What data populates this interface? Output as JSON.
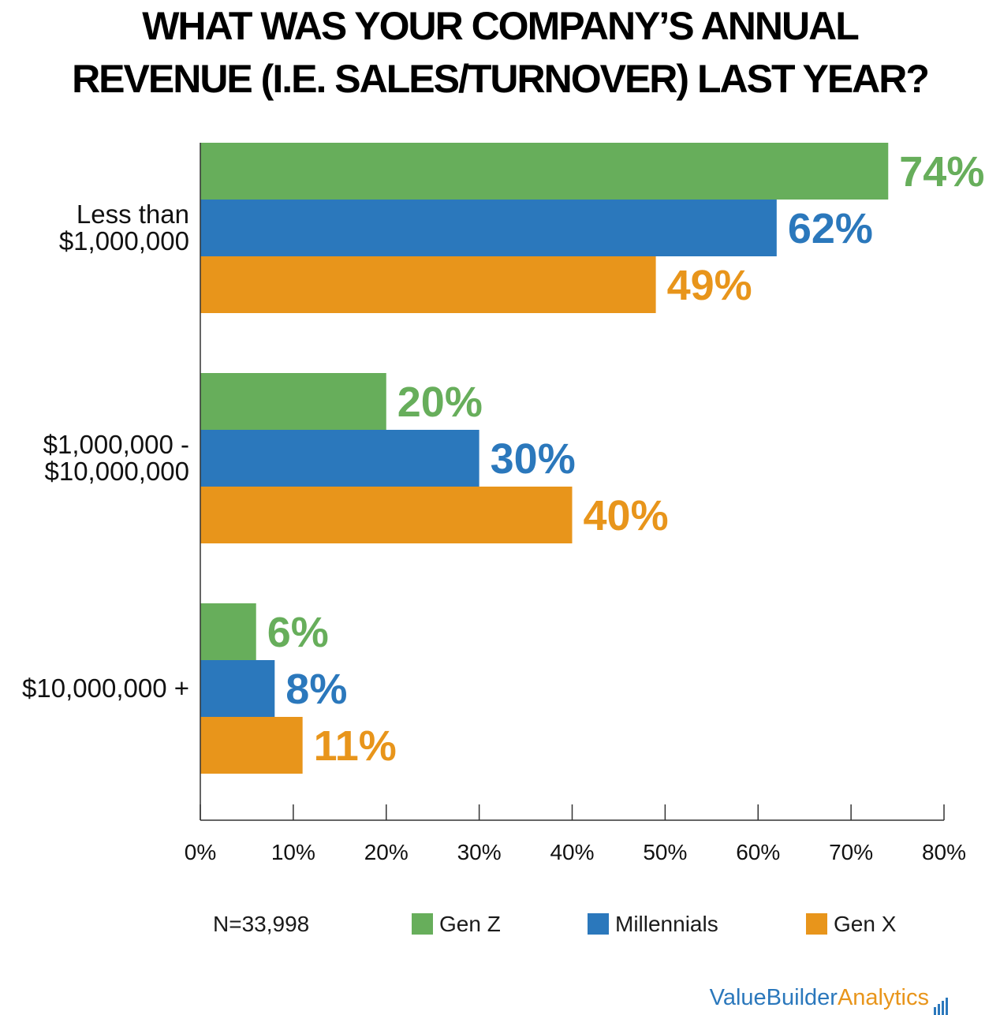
{
  "title_line1": "WHAT WAS YOUR COMPANY’S ANNUAL",
  "title_line2": "REVENUE (I.E. SALES/TURNOVER) LAST YEAR?",
  "sample_size": "N=33,998",
  "brand": {
    "part1": "ValueBuilder",
    "part2": "Analytics",
    "icon": "bar-chart-icon"
  },
  "colors": {
    "gen_z": "#67ae5b",
    "millennials": "#2b78bc",
    "gen_x": "#e8951b"
  },
  "chart_data": {
    "type": "bar",
    "orientation": "horizontal",
    "categories": [
      [
        "Less than",
        "$1,000,000"
      ],
      [
        "$1,000,000 -",
        "$10,000,000"
      ],
      [
        "$10,000,000 +"
      ]
    ],
    "series": [
      {
        "name": "Gen Z",
        "values": [
          74,
          20,
          6
        ],
        "labels": [
          "74%",
          "20%",
          "6%"
        ]
      },
      {
        "name": "Millennials",
        "values": [
          62,
          30,
          8
        ],
        "labels": [
          "62%",
          "30%",
          "8%"
        ]
      },
      {
        "name": "Gen X",
        "values": [
          49,
          40,
          11
        ],
        "labels": [
          "49%",
          "40%",
          "11%"
        ]
      }
    ],
    "xlim": [
      0,
      80
    ],
    "x_ticks": [
      "0%",
      "10%",
      "20%",
      "30%",
      "40%",
      "50%",
      "60%",
      "70%",
      "80%"
    ],
    "legend_position": "bottom",
    "grid": false
  }
}
